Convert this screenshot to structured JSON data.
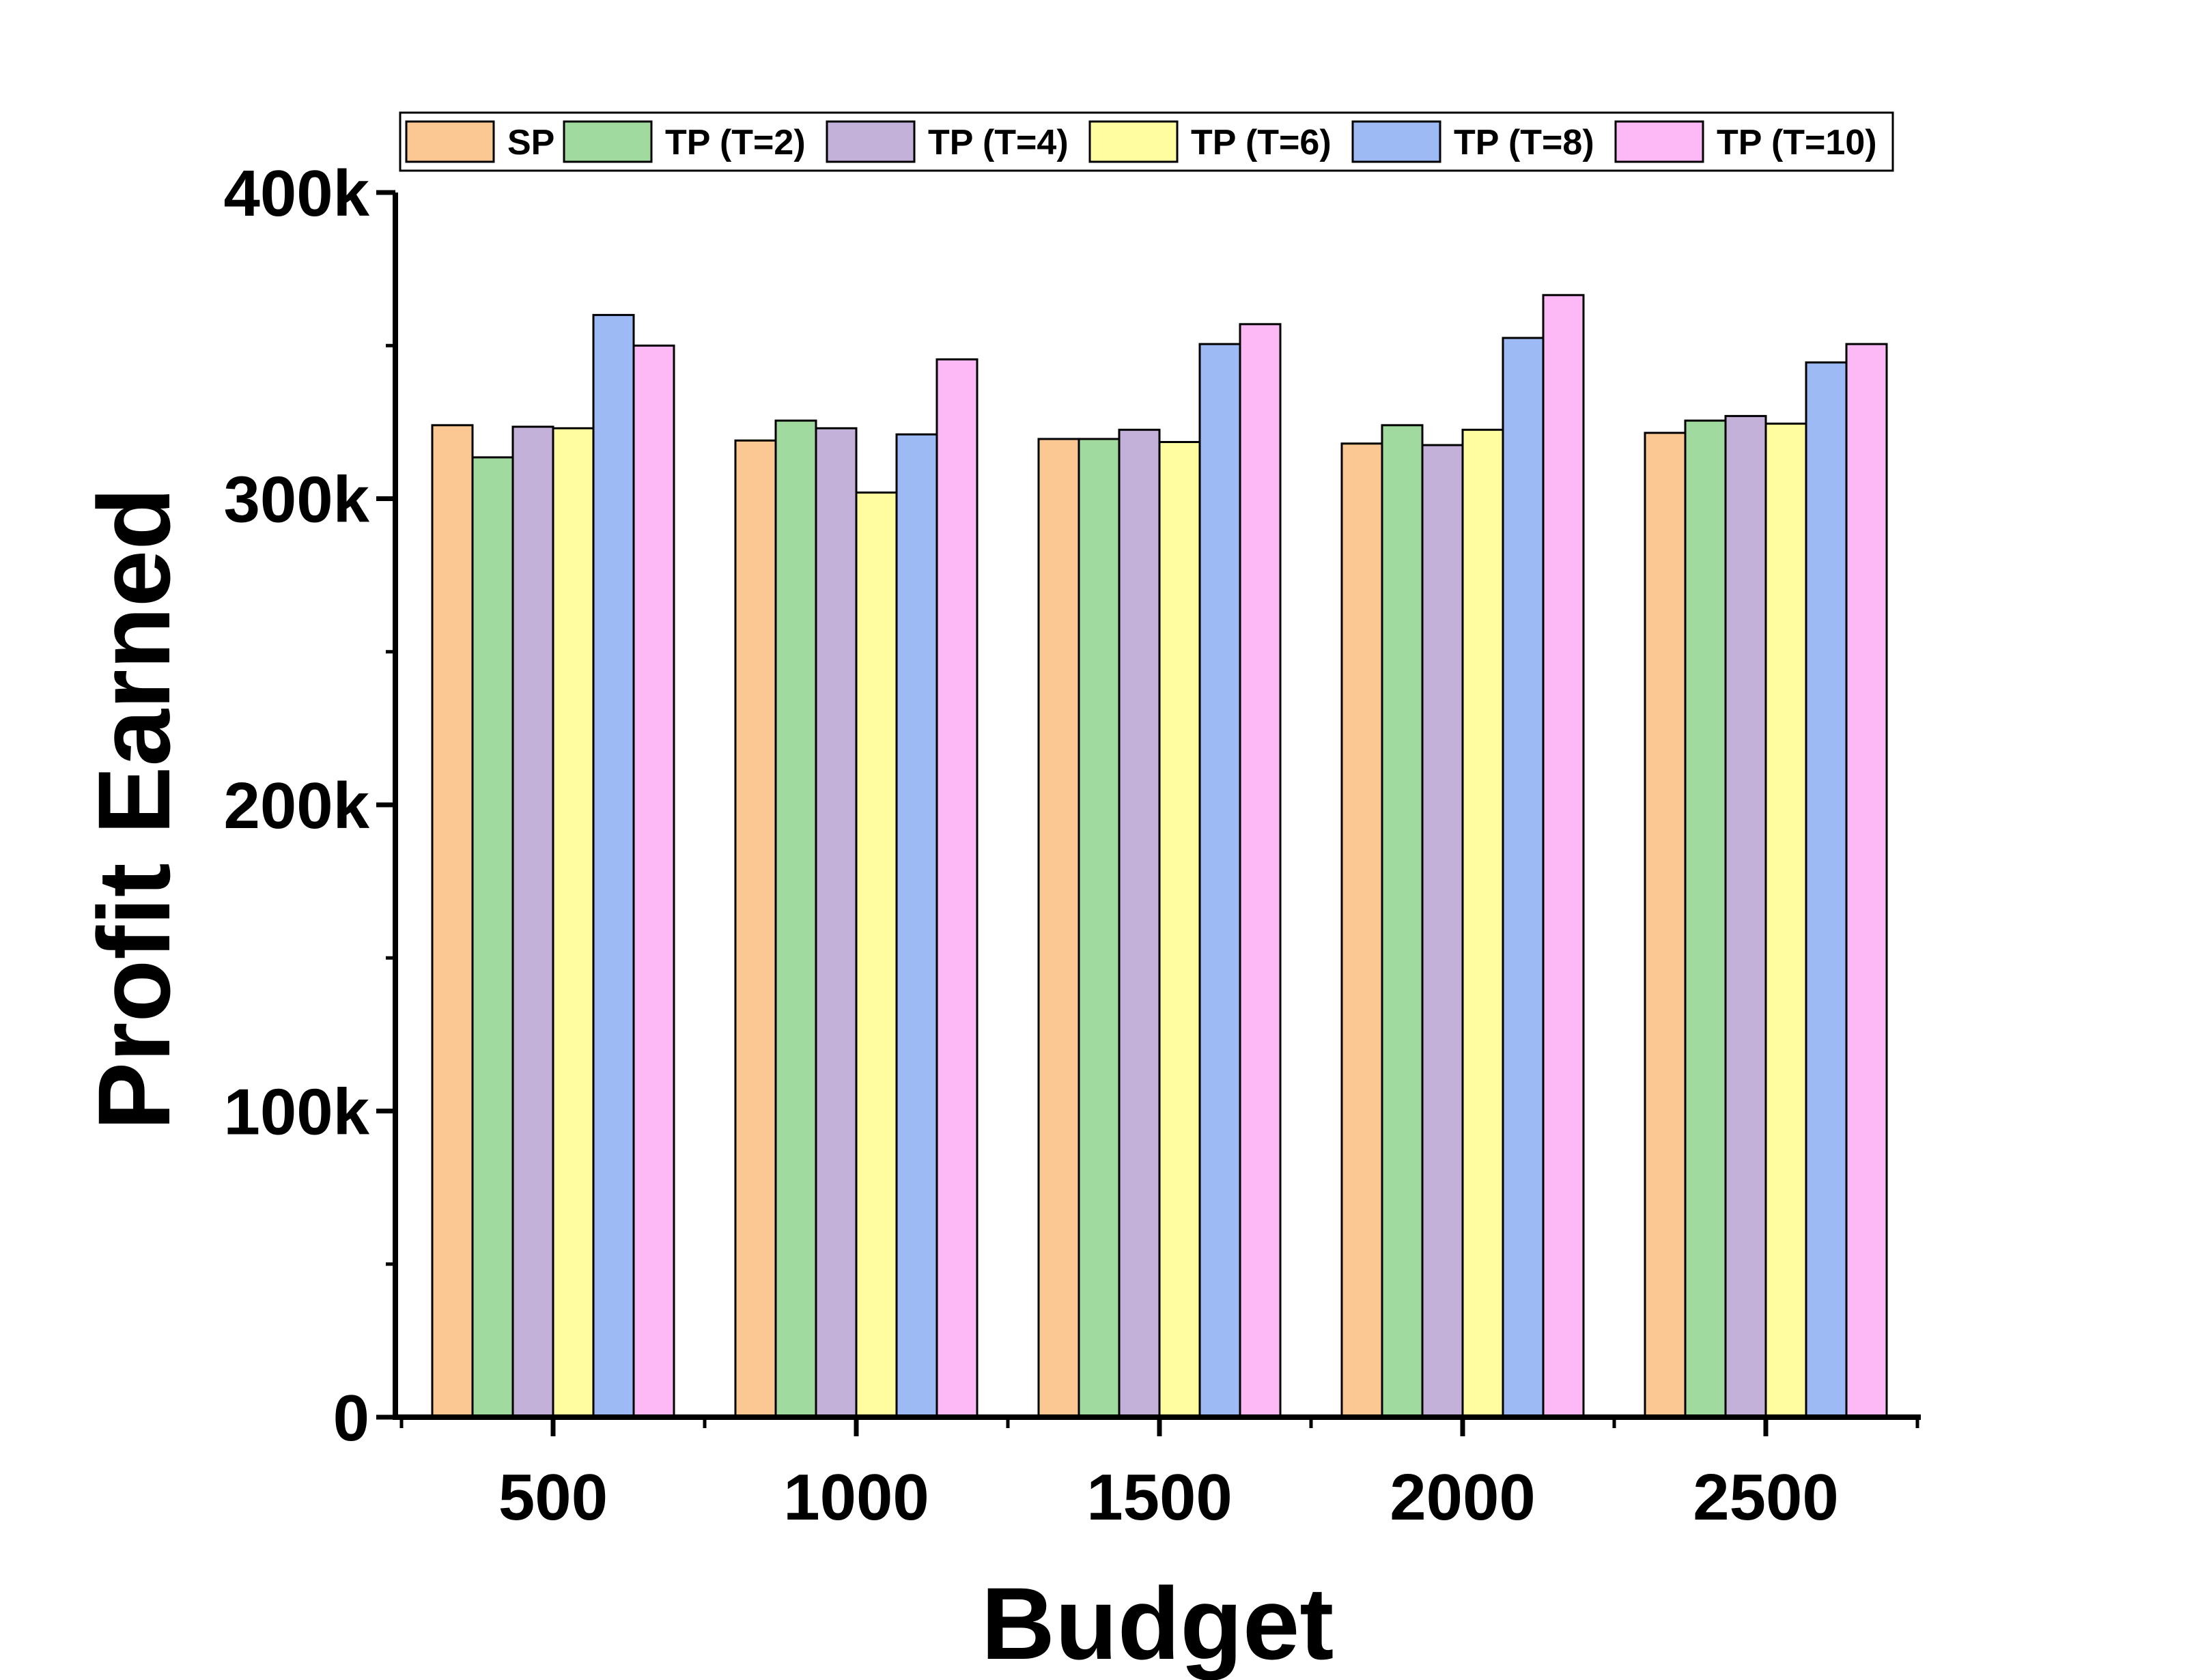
{
  "chart_data": {
    "type": "bar",
    "xlabel": "Budget",
    "ylabel": "Profit Earned",
    "categories": [
      "500",
      "1000",
      "1500",
      "2000",
      "2500"
    ],
    "ylim": [
      0,
      400000
    ],
    "yticks": [
      0,
      100000,
      200000,
      300000,
      400000
    ],
    "ytick_labels": [
      "0",
      "100k",
      "200k",
      "300k",
      "400k"
    ],
    "legend_position": "top",
    "series": [
      {
        "name": "SP",
        "color": "#FBC893",
        "values": [
          324000,
          319000,
          319500,
          318000,
          321500
        ]
      },
      {
        "name": "TP (T=2)",
        "color": "#A0DA9E",
        "values": [
          313500,
          325500,
          319500,
          324000,
          325500
        ]
      },
      {
        "name": "TP (T=4)",
        "color": "#C3B1D9",
        "values": [
          323500,
          323000,
          322500,
          317500,
          327000
        ]
      },
      {
        "name": "TP (T=6)",
        "color": "#FFFDA0",
        "values": [
          323000,
          302000,
          318500,
          322500,
          324500
        ]
      },
      {
        "name": "TP (T=8)",
        "color": "#9DBAF4",
        "values": [
          360000,
          321000,
          350500,
          352500,
          344500
        ]
      },
      {
        "name": "TP (T=10)",
        "color": "#FDB9F6",
        "values": [
          350000,
          345500,
          357000,
          366500,
          350500
        ]
      }
    ]
  }
}
